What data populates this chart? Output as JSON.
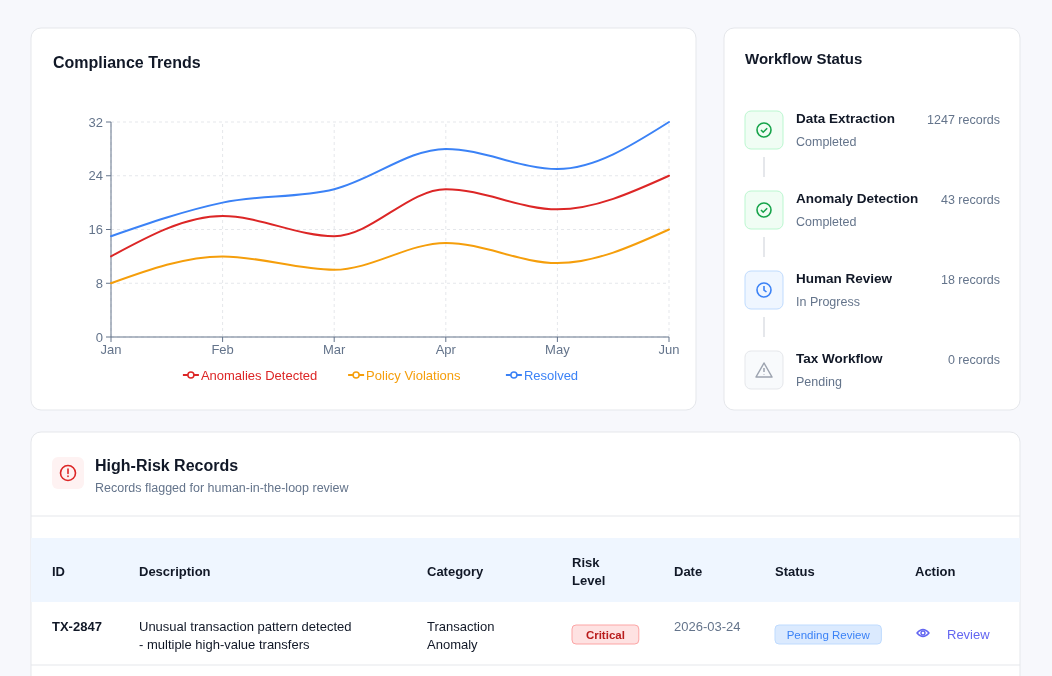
{
  "chart_data": [
    {
      "type": "line",
      "title": "Compliance Trends",
      "categories": [
        "Jan",
        "Feb",
        "Mar",
        "Apr",
        "May",
        "Jun"
      ],
      "series": [
        {
          "name": "Anomalies Detected",
          "color": "#dc2626",
          "values": [
            12,
            18,
            15,
            22,
            19,
            24
          ]
        },
        {
          "name": "Policy Violations",
          "color": "#f59e0b",
          "values": [
            8,
            12,
            10,
            14,
            11,
            16
          ]
        },
        {
          "name": "Resolved",
          "color": "#3b82f6",
          "values": [
            15,
            20,
            22,
            28,
            25,
            32
          ]
        }
      ],
      "ylim": [
        0,
        32
      ],
      "yticks": [
        0,
        8,
        16,
        24,
        32
      ],
      "grid": true,
      "legend": "bottom"
    },
    {
      "type": "other",
      "title": "Workflow Status",
      "annotations": [
        "Data Extraction",
        "Completed",
        "1247 records",
        "Anomaly Detection",
        "Completed",
        "43 records",
        "Human Review",
        "In Progress",
        "18 records",
        "Tax Workflow",
        "Pending",
        "0 records"
      ]
    },
    {
      "type": "other",
      "title": "High-Risk Records",
      "subtitle": "Records flagged for human-in-the-loop review",
      "categories": [
        "ID",
        "Description",
        "Category",
        "Risk Level",
        "Date",
        "Status",
        "Action"
      ],
      "annotations": [
        "TX-2847",
        "Unusual transaction pattern detected - multiple high-value transfers",
        "Transaction Anomaly",
        "Critical",
        "2026-03-24",
        "Pending Review",
        "Review"
      ]
    }
  ]
}
